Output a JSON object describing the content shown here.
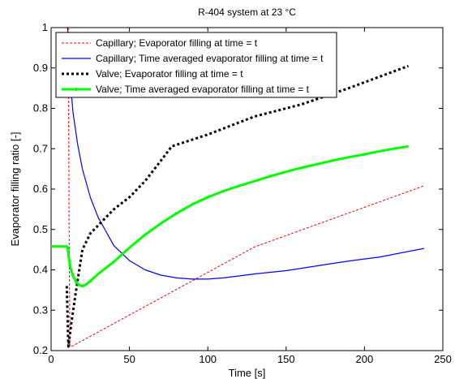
{
  "chart_data": {
    "type": "line",
    "title": "R-404 system at 23 °C",
    "xlabel": "Time [s]",
    "ylabel": "Evaporator filling ratio [-]",
    "xlim": [
      0,
      250
    ],
    "ylim": [
      0.2,
      1.0
    ],
    "xticks": [
      0,
      50,
      100,
      150,
      200,
      250
    ],
    "yticks": [
      0.2,
      0.3,
      0.4,
      0.5,
      0.6,
      0.7,
      0.8,
      0.9,
      1.0
    ],
    "ytick_labels": [
      "0.2",
      "0.3",
      "0.4",
      "0.5",
      "0.6",
      "0.7",
      "0.8",
      "0.9",
      "1"
    ],
    "grid": false,
    "legend_position": "top-left",
    "series": [
      {
        "name": "Capillary; Evaporator filling at time = t",
        "color": "#ff0000",
        "style": "dashed",
        "x": [
          11,
          11.5,
          12,
          13,
          130,
          238
        ],
        "y": [
          1.0,
          0.5,
          0.21,
          0.21,
          0.457,
          0.608
        ]
      },
      {
        "name": "Capillary; Time averaged evaporator filling at time = t",
        "color": "#0000ff",
        "style": "solid",
        "x": [
          10,
          10.5,
          11,
          12,
          14,
          17,
          20,
          25,
          30,
          40,
          50,
          60,
          70,
          80,
          90,
          100,
          110,
          120,
          130,
          150,
          170,
          190,
          210,
          238
        ],
        "y": [
          1.0,
          1.0,
          0.97,
          0.88,
          0.79,
          0.71,
          0.65,
          0.58,
          0.53,
          0.46,
          0.423,
          0.4,
          0.387,
          0.38,
          0.377,
          0.377,
          0.38,
          0.385,
          0.39,
          0.398,
          0.41,
          0.422,
          0.432,
          0.453
        ]
      },
      {
        "name": "Valve; Evaporator filling at time = t",
        "color": "#000000",
        "style": "dotted",
        "x": [
          10,
          11,
          13,
          16,
          20,
          25,
          30,
          40,
          50,
          60,
          70,
          77,
          100,
          130,
          160,
          190,
          228
        ],
        "y": [
          0.36,
          0.21,
          0.27,
          0.35,
          0.45,
          0.49,
          0.51,
          0.55,
          0.58,
          0.62,
          0.67,
          0.706,
          0.735,
          0.78,
          0.81,
          0.85,
          0.905
        ]
      },
      {
        "name": "Valve; Time averaged evaporator filling at time = t",
        "color": "#00ff00",
        "style": "solid-dot",
        "x": [
          0,
          10,
          10.5,
          11,
          12,
          14,
          16,
          18,
          20,
          22,
          25,
          30,
          40,
          50,
          60,
          70,
          80,
          90,
          100,
          110,
          120,
          130,
          140,
          150,
          160,
          170,
          180,
          190,
          200,
          210,
          220,
          228
        ],
        "y": [
          0.458,
          0.458,
          0.455,
          0.44,
          0.41,
          0.385,
          0.37,
          0.362,
          0.36,
          0.363,
          0.372,
          0.39,
          0.42,
          0.455,
          0.487,
          0.515,
          0.54,
          0.562,
          0.58,
          0.595,
          0.608,
          0.62,
          0.632,
          0.643,
          0.653,
          0.662,
          0.671,
          0.679,
          0.686,
          0.694,
          0.701,
          0.706
        ]
      }
    ]
  }
}
